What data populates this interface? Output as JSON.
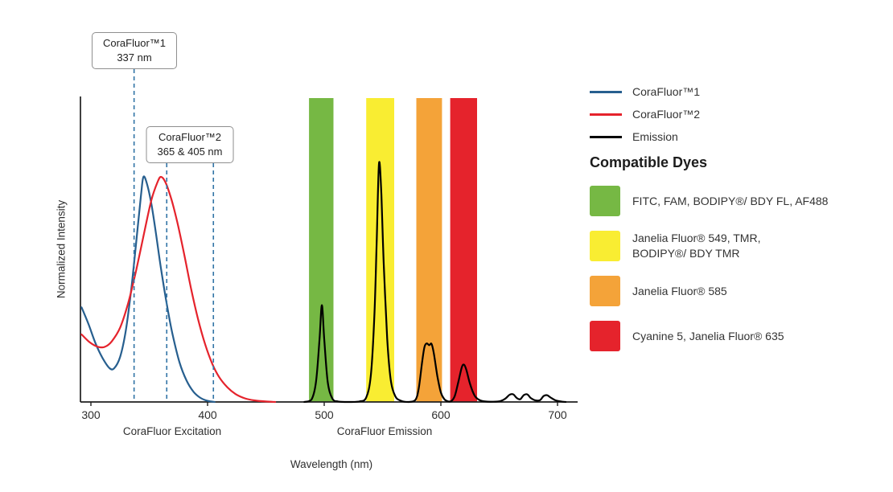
{
  "chart_data": {
    "type": "line",
    "title": "",
    "xlabel": "Wavelength (nm)",
    "ylabel": "Normalized Intensity",
    "x_ticks": [
      300,
      400,
      500,
      600,
      700
    ],
    "xlim": [
      292,
      710
    ],
    "ylim": [
      0,
      1.36
    ],
    "grid": false,
    "legend_position": "right",
    "axis_color": "#1f1f1f",
    "marker_color": "#3174a6",
    "x_section_labels": [
      "CoraFluor Excitation",
      "CoraFluor Emission"
    ],
    "dashed_markers": [
      337,
      365,
      405
    ],
    "callouts": [
      {
        "lines": [
          "CoraFluor™1",
          "337 nm"
        ]
      },
      {
        "lines": [
          "CoraFluor™2",
          "365 & 405 nm"
        ]
      }
    ],
    "bands": [
      {
        "id": "green",
        "from": 487,
        "to": 508,
        "color": "#76b844",
        "dyes": "FITC, FAM, BODIPY®/ BDY FL, AF488"
      },
      {
        "id": "yellow",
        "from": 536,
        "to": 560,
        "color": "#f9ed32",
        "dyes": "Janelia Fluor® 549, TMR, BODIPY®/ BDY TMR"
      },
      {
        "id": "orange",
        "from": 579,
        "to": 601,
        "color": "#f4a339",
        "dyes": "Janelia Fluor® 585"
      },
      {
        "id": "red",
        "from": 608,
        "to": 631,
        "color": "#e5232c",
        "dyes": "Cyanine 5, Janelia Fluor® 635"
      }
    ],
    "series": [
      {
        "name": "CoraFluor™1",
        "color": "#275f8f",
        "points": [
          [
            292,
            0.42
          ],
          [
            298,
            0.345
          ],
          [
            304,
            0.26
          ],
          [
            310,
            0.195
          ],
          [
            316,
            0.15
          ],
          [
            320,
            0.15
          ],
          [
            325,
            0.2
          ],
          [
            330,
            0.32
          ],
          [
            335,
            0.52
          ],
          [
            339,
            0.72
          ],
          [
            343,
            0.92
          ],
          [
            345,
            1.0
          ],
          [
            348,
            0.97
          ],
          [
            352,
            0.875
          ],
          [
            356,
            0.74
          ],
          [
            360,
            0.595
          ],
          [
            365,
            0.435
          ],
          [
            370,
            0.3
          ],
          [
            376,
            0.175
          ],
          [
            382,
            0.095
          ],
          [
            388,
            0.045
          ],
          [
            394,
            0.018
          ],
          [
            400,
            0.005
          ],
          [
            406,
            0.0
          ]
        ]
      },
      {
        "name": "CoraFluor™2",
        "color": "#e5232c",
        "points": [
          [
            292,
            0.3
          ],
          [
            299,
            0.265
          ],
          [
            306,
            0.245
          ],
          [
            312,
            0.245
          ],
          [
            318,
            0.27
          ],
          [
            325,
            0.33
          ],
          [
            332,
            0.44
          ],
          [
            339,
            0.59
          ],
          [
            346,
            0.76
          ],
          [
            352,
            0.9
          ],
          [
            357,
            0.975
          ],
          [
            360,
            1.0
          ],
          [
            364,
            0.975
          ],
          [
            369,
            0.9
          ],
          [
            374,
            0.8
          ],
          [
            380,
            0.655
          ],
          [
            386,
            0.5
          ],
          [
            392,
            0.365
          ],
          [
            398,
            0.255
          ],
          [
            404,
            0.17
          ],
          [
            410,
            0.11
          ],
          [
            417,
            0.065
          ],
          [
            424,
            0.035
          ],
          [
            432,
            0.016
          ],
          [
            440,
            0.007
          ],
          [
            450,
            0.002
          ],
          [
            458,
            0.0
          ]
        ]
      },
      {
        "name": "Emission",
        "color": "#000000",
        "points": [
          [
            483,
            0.0
          ],
          [
            489,
            0.01
          ],
          [
            493,
            0.09
          ],
          [
            496,
            0.28
          ],
          [
            498,
            0.43
          ],
          [
            500,
            0.28
          ],
          [
            503,
            0.09
          ],
          [
            507,
            0.015
          ],
          [
            512,
            0.002
          ],
          [
            520,
            0.0
          ],
          [
            530,
            0.002
          ],
          [
            536,
            0.02
          ],
          [
            540,
            0.12
          ],
          [
            543,
            0.38
          ],
          [
            545,
            0.72
          ],
          [
            547,
            1.06
          ],
          [
            549,
            0.92
          ],
          [
            551,
            0.62
          ],
          [
            554,
            0.28
          ],
          [
            557,
            0.1
          ],
          [
            561,
            0.025
          ],
          [
            566,
            0.005
          ],
          [
            572,
            0.0
          ],
          [
            578,
            0.008
          ],
          [
            581,
            0.06
          ],
          [
            584,
            0.18
          ],
          [
            586,
            0.245
          ],
          [
            588,
            0.26
          ],
          [
            590,
            0.252
          ],
          [
            592,
            0.258
          ],
          [
            594,
            0.215
          ],
          [
            597,
            0.115
          ],
          [
            600,
            0.042
          ],
          [
            603,
            0.012
          ],
          [
            606,
            0.003
          ],
          [
            609,
            0.004
          ],
          [
            612,
            0.028
          ],
          [
            615,
            0.09
          ],
          [
            618,
            0.155
          ],
          [
            620,
            0.165
          ],
          [
            622,
            0.14
          ],
          [
            625,
            0.08
          ],
          [
            629,
            0.028
          ],
          [
            633,
            0.009
          ],
          [
            638,
            0.002
          ],
          [
            645,
            0.001
          ],
          [
            651,
            0.004
          ],
          [
            655,
            0.014
          ],
          [
            659,
            0.032
          ],
          [
            662,
            0.034
          ],
          [
            665,
            0.018
          ],
          [
            668,
            0.012
          ],
          [
            671,
            0.03
          ],
          [
            674,
            0.034
          ],
          [
            677,
            0.018
          ],
          [
            681,
            0.007
          ],
          [
            685,
            0.008
          ],
          [
            688,
            0.026
          ],
          [
            691,
            0.03
          ],
          [
            694,
            0.02
          ],
          [
            698,
            0.008
          ],
          [
            703,
            0.002
          ],
          [
            707,
            0.0
          ]
        ]
      }
    ]
  },
  "legend": {
    "series": [
      {
        "label": "CoraFluor™1",
        "color": "#275f8f"
      },
      {
        "label": "CoraFluor™2",
        "color": "#e5232c"
      },
      {
        "label": "Emission",
        "color": "#000000"
      }
    ],
    "compatible_dyes_heading": "Compatible Dyes",
    "dyes": [
      {
        "color": "#76b844",
        "lines": [
          "FITC, FAM, BODIPY®/ BDY FL, AF488"
        ]
      },
      {
        "color": "#f9ed32",
        "lines": [
          "Janelia Fluor® 549, TMR,",
          "BODIPY®/ BDY TMR"
        ]
      },
      {
        "color": "#f4a339",
        "lines": [
          "Janelia Fluor® 585"
        ]
      },
      {
        "color": "#e5232c",
        "lines": [
          "Cyanine 5, Janelia Fluor® 635"
        ]
      }
    ]
  }
}
